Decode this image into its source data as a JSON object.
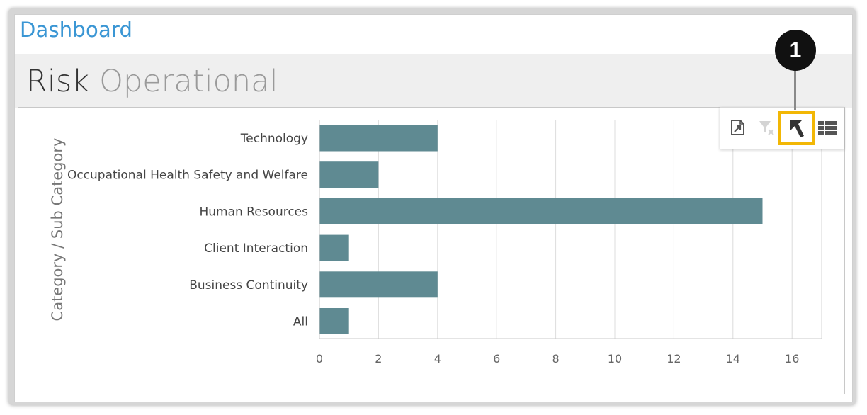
{
  "app": {
    "title": "Dashboard",
    "title_color": "#3a96d4"
  },
  "page": {
    "title": "Risk",
    "subtitle": "Operational"
  },
  "chart_data": {
    "type": "bar",
    "orientation": "horizontal",
    "ylabel": "Category / Sub Category",
    "categories": [
      "Technology",
      "Occupational Health Safety and Welfare",
      "Human Resources",
      "Client Interaction",
      "Business Continuity",
      "All"
    ],
    "values": [
      4,
      2,
      15,
      1,
      4,
      1
    ],
    "xlim": [
      0,
      17
    ],
    "xticks": [
      "0",
      "2",
      "4",
      "6",
      "8",
      "10",
      "12",
      "14",
      "16"
    ],
    "grid": true,
    "bar_color": "#5f8a92"
  },
  "toolbar": {
    "buttons": [
      {
        "icon": "export-icon",
        "enabled": true
      },
      {
        "icon": "clear-filter-icon",
        "enabled": false
      },
      {
        "icon": "drill-up-icon",
        "enabled": true,
        "highlighted": true
      },
      {
        "icon": "table-view-icon",
        "enabled": true
      }
    ],
    "highlight_color": "#f2b705"
  },
  "callout": {
    "number": "1"
  }
}
